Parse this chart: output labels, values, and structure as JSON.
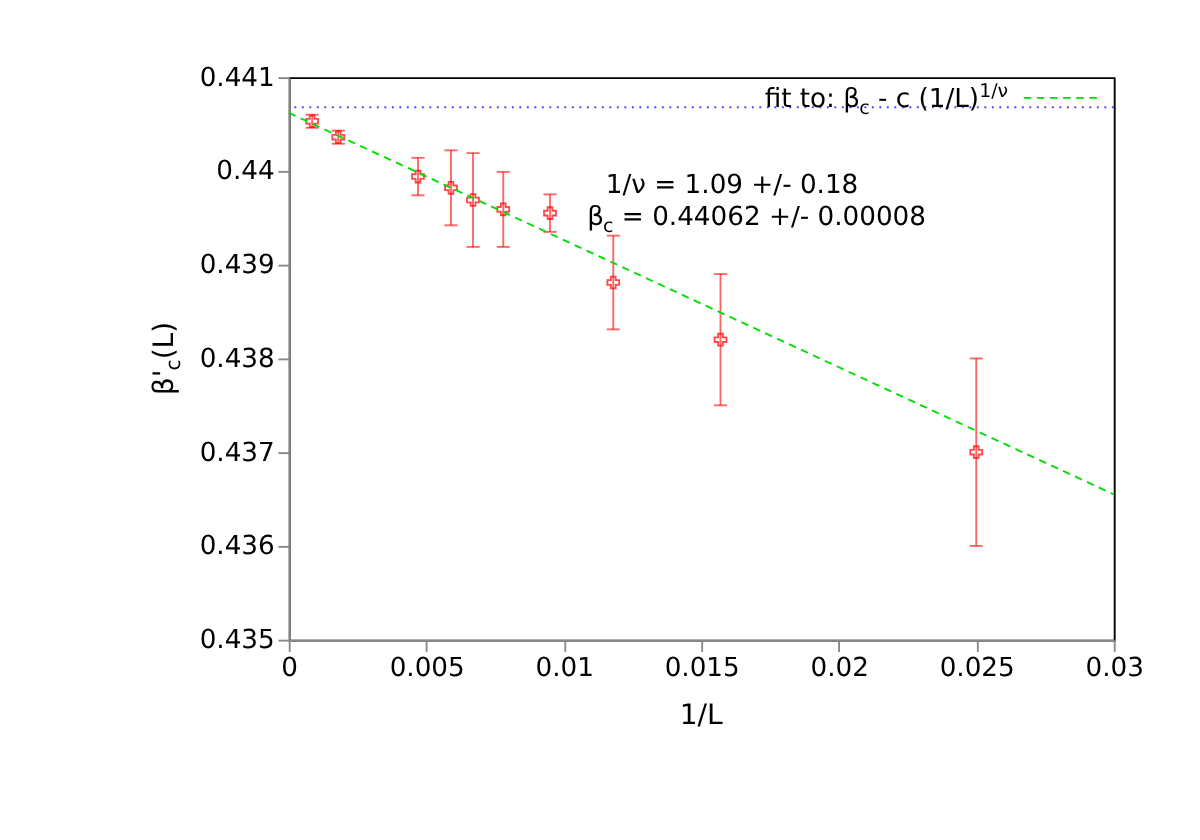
{
  "chart_data": {
    "type": "scatter",
    "xlabel": "1/L",
    "ylabel": "β'$_{c}$(L)",
    "xlim": [
      0,
      0.03
    ],
    "xticks": [
      0,
      0.005,
      0.01,
      0.015,
      0.02,
      0.025,
      0.03
    ],
    "ylim": [
      0.435,
      0.441
    ],
    "yticks": [
      0.435,
      0.436,
      0.437,
      0.438,
      0.439,
      0.44,
      0.441
    ],
    "grid": false,
    "legend": "top right",
    "marker": "cross",
    "series": [
      {
        "color": "#ff0000",
        "x": [
          0.00085,
          0.0018,
          0.0047,
          0.0059,
          0.0067,
          0.0078,
          0.0095,
          0.0118,
          0.0157,
          0.025
        ],
        "values": [
          0.44053,
          0.44036,
          0.43994,
          0.43982,
          0.43969,
          0.43959,
          0.43955,
          0.43881,
          0.4382,
          0.437
        ],
        "errors": [
          7e-05,
          7e-05,
          0.0002,
          0.0004,
          0.0005,
          0.0004,
          0.0002,
          0.0005,
          0.0007,
          0.001
        ]
      },
      {
        "type": "line",
        "name": "fit to: β$_{c}$ - c (1/L)$^{1/ν}$",
        "color": "#00dd00",
        "line_style": "dashed",
        "marker": "none",
        "x": [
          0,
          0.03
        ],
        "values": [
          0.44062,
          0.43655
        ]
      }
    ],
    "ref_lines": [
      {
        "axis": "y",
        "value": 0.44068,
        "color": "#4444ff",
        "line_style": "dotted"
      }
    ],
    "annotations": [
      "1/ν =       1.09  +/-  0.18",
      "β$_{c}$ = 0.44062 +/- 0.00008"
    ]
  }
}
